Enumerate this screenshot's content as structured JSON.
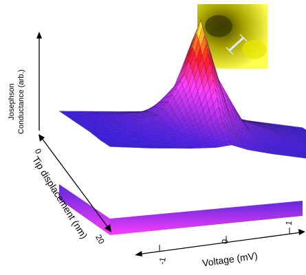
{
  "chart_data": {
    "type": "surface",
    "x_axis": {
      "label": "Voltage (mV)",
      "ticks": [
        "-1",
        "0",
        "1"
      ],
      "range": [
        -1.5,
        1.5
      ]
    },
    "y_axis": {
      "label": "Tip displacement (nm)",
      "ticks": [
        "0",
        "20"
      ],
      "range": [
        0,
        25
      ]
    },
    "z_axis": {
      "label_line1": "Josephson",
      "label_line2": "Conductance (arb.)"
    },
    "surface": {
      "voltage_mV": [
        -1.5,
        -1.0,
        -0.5,
        -0.2,
        0,
        0.2,
        0.5,
        1.0,
        1.5
      ],
      "displacement_nm": [
        0,
        5,
        10,
        15,
        20,
        25
      ],
      "conductance_arb": [
        [
          0.08,
          0.1,
          0.12,
          0.18,
          0.3,
          0.18,
          0.12,
          0.1,
          0.08
        ],
        [
          0.08,
          0.12,
          0.18,
          0.4,
          0.75,
          0.4,
          0.18,
          0.12,
          0.08
        ],
        [
          0.08,
          0.12,
          0.2,
          0.55,
          1.0,
          0.55,
          0.2,
          0.12,
          0.08
        ],
        [
          0.08,
          0.11,
          0.16,
          0.35,
          0.65,
          0.35,
          0.16,
          0.11,
          0.08
        ],
        [
          0.07,
          0.09,
          0.12,
          0.18,
          0.3,
          0.18,
          0.12,
          0.09,
          0.07
        ],
        [
          0.07,
          0.08,
          0.1,
          0.12,
          0.15,
          0.12,
          0.1,
          0.08,
          0.07
        ]
      ]
    },
    "colormap": [
      "#1a1aff",
      "#8a2be2",
      "#ff40ff",
      "#ff1a1a",
      "#ffff33"
    ],
    "grid": false,
    "inset": {
      "type": "image",
      "colors": [
        "#3a3a00",
        "#c9c400",
        "#ffff4d"
      ]
    }
  }
}
